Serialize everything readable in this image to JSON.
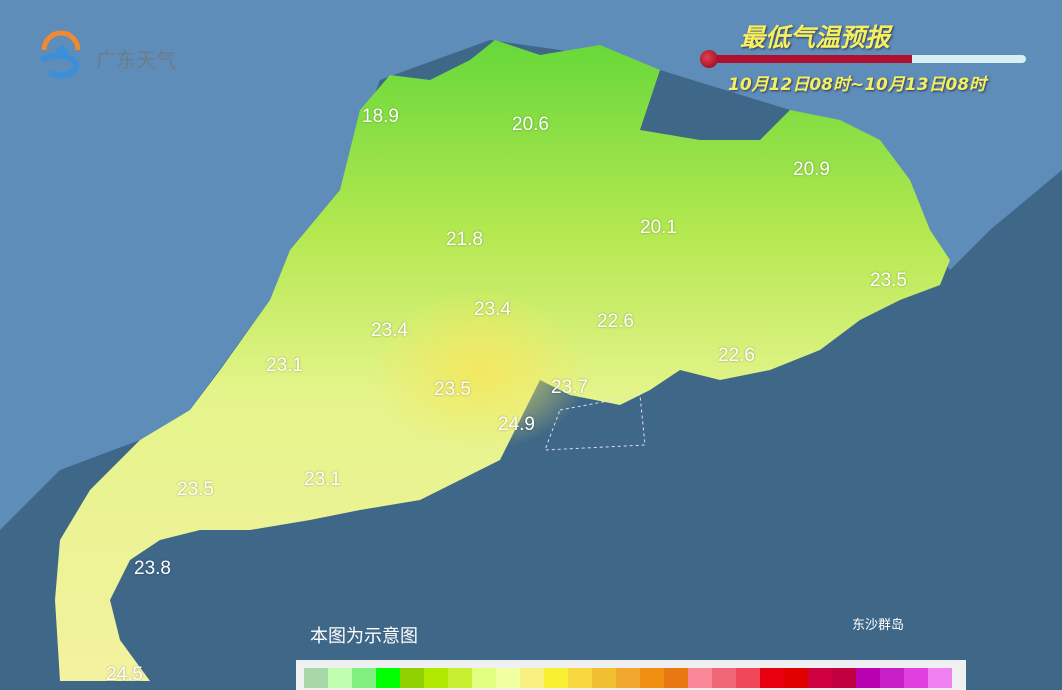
{
  "header": {
    "title": "最低气温预报",
    "time_range": "10月12日08时~10月13日08时",
    "thermometer_fill_percent": 64
  },
  "logo": {
    "text": "广东天气"
  },
  "map": {
    "colors": {
      "ocean": "#3e6788",
      "land_outside": "#5b8bb8",
      "cool": "#7fd83a",
      "mid": "#c8ee5a",
      "warm": "#f4f49a"
    },
    "temperature_labels": [
      {
        "value": "18.9"
      },
      {
        "value": "20.6"
      },
      {
        "value": "20.9"
      },
      {
        "value": "21.8"
      },
      {
        "value": "20.1"
      },
      {
        "value": "23.5"
      },
      {
        "value": "23.4"
      },
      {
        "value": "23.4"
      },
      {
        "value": "22.6"
      },
      {
        "value": "23.1"
      },
      {
        "value": "22.6"
      },
      {
        "value": "23.5"
      },
      {
        "value": "23.7"
      },
      {
        "value": "24.9"
      },
      {
        "value": "23.5"
      },
      {
        "value": "23.1"
      },
      {
        "value": "23.8"
      },
      {
        "value": "24.5"
      }
    ],
    "note": "本图为示意图",
    "island_label": "东沙群岛"
  },
  "legend": {
    "colors": [
      "#a8d8a8",
      "#c0ffb0",
      "#80f080",
      "#00ff00",
      "#90d000",
      "#b0e800",
      "#c8f030",
      "#e0ff80",
      "#f0ffa0",
      "#f8f080",
      "#f8f030",
      "#f8d840",
      "#f0c030",
      "#f0a830",
      "#f09010",
      "#e87810",
      "#f88898",
      "#f06878",
      "#f04858",
      "#e80010",
      "#e00000",
      "#d00040",
      "#c00040",
      "#b800b0",
      "#c820c8",
      "#e040e0",
      "#f080f0"
    ]
  }
}
